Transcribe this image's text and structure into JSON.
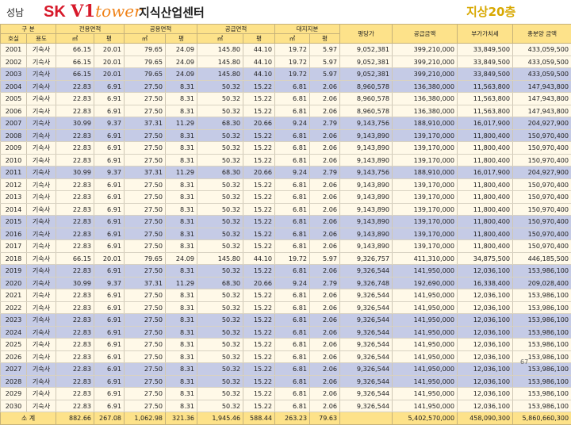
{
  "header": {
    "city": "성남",
    "logo_sk": "SK",
    "logo_v1": "V1",
    "logo_tower": "tower",
    "building_name": "지식산업센터",
    "floor_label": "지상20층"
  },
  "table": {
    "group_headers": [
      "구 분",
      "전용면적",
      "공용면적",
      "공급면적",
      "대지지분",
      "평당가",
      "공급금액",
      "부가가치세",
      "총분양 금액"
    ],
    "sub_headers": [
      "호실",
      "용도",
      "㎡",
      "평",
      "㎡",
      "평",
      "㎡",
      "평",
      "㎡",
      "평"
    ],
    "rows": [
      {
        "unit": "2001",
        "use": "기숙사",
        "ex_m2": "66.15",
        "ex_py": "20.01",
        "co_m2": "79.65",
        "co_py": "24.09",
        "su_m2": "145.80",
        "su_py": "44.10",
        "la_m2": "19.72",
        "la_py": "5.97",
        "ppp": "9,052,381",
        "supply": "399,210,000",
        "vat": "33,849,500",
        "total": "433,059,500"
      },
      {
        "unit": "2002",
        "use": "기숙사",
        "ex_m2": "66.15",
        "ex_py": "20.01",
        "co_m2": "79.65",
        "co_py": "24.09",
        "su_m2": "145.80",
        "su_py": "44.10",
        "la_m2": "19.72",
        "la_py": "5.97",
        "ppp": "9,052,381",
        "supply": "399,210,000",
        "vat": "33,849,500",
        "total": "433,059,500"
      },
      {
        "unit": "2003",
        "use": "기숙사",
        "ex_m2": "66.15",
        "ex_py": "20.01",
        "co_m2": "79.65",
        "co_py": "24.09",
        "su_m2": "145.80",
        "su_py": "44.10",
        "la_m2": "19.72",
        "la_py": "5.97",
        "ppp": "9,052,381",
        "supply": "399,210,000",
        "vat": "33,849,500",
        "total": "433,059,500"
      },
      {
        "unit": "2004",
        "use": "기숙사",
        "ex_m2": "22.83",
        "ex_py": "6.91",
        "co_m2": "27.50",
        "co_py": "8.31",
        "su_m2": "50.32",
        "su_py": "15.22",
        "la_m2": "6.81",
        "la_py": "2.06",
        "ppp": "8,960,578",
        "supply": "136,380,000",
        "vat": "11,563,800",
        "total": "147,943,800"
      },
      {
        "unit": "2005",
        "use": "기숙사",
        "ex_m2": "22.83",
        "ex_py": "6.91",
        "co_m2": "27.50",
        "co_py": "8.31",
        "su_m2": "50.32",
        "su_py": "15.22",
        "la_m2": "6.81",
        "la_py": "2.06",
        "ppp": "8,960,578",
        "supply": "136,380,000",
        "vat": "11,563,800",
        "total": "147,943,800"
      },
      {
        "unit": "2006",
        "use": "기숙사",
        "ex_m2": "22.83",
        "ex_py": "6.91",
        "co_m2": "27.50",
        "co_py": "8.31",
        "su_m2": "50.32",
        "su_py": "15.22",
        "la_m2": "6.81",
        "la_py": "2.06",
        "ppp": "8,960,578",
        "supply": "136,380,000",
        "vat": "11,563,800",
        "total": "147,943,800"
      },
      {
        "unit": "2007",
        "use": "기숙사",
        "ex_m2": "30.99",
        "ex_py": "9.37",
        "co_m2": "37.31",
        "co_py": "11.29",
        "su_m2": "68.30",
        "su_py": "20.66",
        "la_m2": "9.24",
        "la_py": "2.79",
        "ppp": "9,143,756",
        "supply": "188,910,000",
        "vat": "16,017,900",
        "total": "204,927,900"
      },
      {
        "unit": "2008",
        "use": "기숙사",
        "ex_m2": "22.83",
        "ex_py": "6.91",
        "co_m2": "27.50",
        "co_py": "8.31",
        "su_m2": "50.32",
        "su_py": "15.22",
        "la_m2": "6.81",
        "la_py": "2.06",
        "ppp": "9,143,890",
        "supply": "139,170,000",
        "vat": "11,800,400",
        "total": "150,970,400"
      },
      {
        "unit": "2009",
        "use": "기숙사",
        "ex_m2": "22.83",
        "ex_py": "6.91",
        "co_m2": "27.50",
        "co_py": "8.31",
        "su_m2": "50.32",
        "su_py": "15.22",
        "la_m2": "6.81",
        "la_py": "2.06",
        "ppp": "9,143,890",
        "supply": "139,170,000",
        "vat": "11,800,400",
        "total": "150,970,400"
      },
      {
        "unit": "2010",
        "use": "기숙사",
        "ex_m2": "22.83",
        "ex_py": "6.91",
        "co_m2": "27.50",
        "co_py": "8.31",
        "su_m2": "50.32",
        "su_py": "15.22",
        "la_m2": "6.81",
        "la_py": "2.06",
        "ppp": "9,143,890",
        "supply": "139,170,000",
        "vat": "11,800,400",
        "total": "150,970,400"
      },
      {
        "unit": "2011",
        "use": "기숙사",
        "ex_m2": "30.99",
        "ex_py": "9.37",
        "co_m2": "37.31",
        "co_py": "11.29",
        "su_m2": "68.30",
        "su_py": "20.66",
        "la_m2": "9.24",
        "la_py": "2.79",
        "ppp": "9,143,756",
        "supply": "188,910,000",
        "vat": "16,017,900",
        "total": "204,927,900"
      },
      {
        "unit": "2012",
        "use": "기숙사",
        "ex_m2": "22.83",
        "ex_py": "6.91",
        "co_m2": "27.50",
        "co_py": "8.31",
        "su_m2": "50.32",
        "su_py": "15.22",
        "la_m2": "6.81",
        "la_py": "2.06",
        "ppp": "9,143,890",
        "supply": "139,170,000",
        "vat": "11,800,400",
        "total": "150,970,400"
      },
      {
        "unit": "2013",
        "use": "기숙사",
        "ex_m2": "22.83",
        "ex_py": "6.91",
        "co_m2": "27.50",
        "co_py": "8.31",
        "su_m2": "50.32",
        "su_py": "15.22",
        "la_m2": "6.81",
        "la_py": "2.06",
        "ppp": "9,143,890",
        "supply": "139,170,000",
        "vat": "11,800,400",
        "total": "150,970,400"
      },
      {
        "unit": "2014",
        "use": "기숙사",
        "ex_m2": "22.83",
        "ex_py": "6.91",
        "co_m2": "27.50",
        "co_py": "8.31",
        "su_m2": "50.32",
        "su_py": "15.22",
        "la_m2": "6.81",
        "la_py": "2.06",
        "ppp": "9,143,890",
        "supply": "139,170,000",
        "vat": "11,800,400",
        "total": "150,970,400"
      },
      {
        "unit": "2015",
        "use": "기숙사",
        "ex_m2": "22.83",
        "ex_py": "6.91",
        "co_m2": "27.50",
        "co_py": "8.31",
        "su_m2": "50.32",
        "su_py": "15.22",
        "la_m2": "6.81",
        "la_py": "2.06",
        "ppp": "9,143,890",
        "supply": "139,170,000",
        "vat": "11,800,400",
        "total": "150,970,400"
      },
      {
        "unit": "2016",
        "use": "기숙사",
        "ex_m2": "22.83",
        "ex_py": "6.91",
        "co_m2": "27.50",
        "co_py": "8.31",
        "su_m2": "50.32",
        "su_py": "15.22",
        "la_m2": "6.81",
        "la_py": "2.06",
        "ppp": "9,143,890",
        "supply": "139,170,000",
        "vat": "11,800,400",
        "total": "150,970,400"
      },
      {
        "unit": "2017",
        "use": "기숙사",
        "ex_m2": "22.83",
        "ex_py": "6.91",
        "co_m2": "27.50",
        "co_py": "8.31",
        "su_m2": "50.32",
        "su_py": "15.22",
        "la_m2": "6.81",
        "la_py": "2.06",
        "ppp": "9,143,890",
        "supply": "139,170,000",
        "vat": "11,800,400",
        "total": "150,970,400"
      },
      {
        "unit": "2018",
        "use": "기숙사",
        "ex_m2": "66.15",
        "ex_py": "20.01",
        "co_m2": "79.65",
        "co_py": "24.09",
        "su_m2": "145.80",
        "su_py": "44.10",
        "la_m2": "19.72",
        "la_py": "5.97",
        "ppp": "9,326,757",
        "supply": "411,310,000",
        "vat": "34,875,500",
        "total": "446,185,500"
      },
      {
        "unit": "2019",
        "use": "기숙사",
        "ex_m2": "22.83",
        "ex_py": "6.91",
        "co_m2": "27.50",
        "co_py": "8.31",
        "su_m2": "50.32",
        "su_py": "15.22",
        "la_m2": "6.81",
        "la_py": "2.06",
        "ppp": "9,326,544",
        "supply": "141,950,000",
        "vat": "12,036,100",
        "total": "153,986,100"
      },
      {
        "unit": "2020",
        "use": "기숙사",
        "ex_m2": "30.99",
        "ex_py": "9.37",
        "co_m2": "37.31",
        "co_py": "11.29",
        "su_m2": "68.30",
        "su_py": "20.66",
        "la_m2": "9.24",
        "la_py": "2.79",
        "ppp": "9,326,748",
        "supply": "192,690,000",
        "vat": "16,338,400",
        "total": "209,028,400"
      },
      {
        "unit": "2021",
        "use": "기숙사",
        "ex_m2": "22.83",
        "ex_py": "6.91",
        "co_m2": "27.50",
        "co_py": "8.31",
        "su_m2": "50.32",
        "su_py": "15.22",
        "la_m2": "6.81",
        "la_py": "2.06",
        "ppp": "9,326,544",
        "supply": "141,950,000",
        "vat": "12,036,100",
        "total": "153,986,100"
      },
      {
        "unit": "2022",
        "use": "기숙사",
        "ex_m2": "22.83",
        "ex_py": "6.91",
        "co_m2": "27.50",
        "co_py": "8.31",
        "su_m2": "50.32",
        "su_py": "15.22",
        "la_m2": "6.81",
        "la_py": "2.06",
        "ppp": "9,326,544",
        "supply": "141,950,000",
        "vat": "12,036,100",
        "total": "153,986,100"
      },
      {
        "unit": "2023",
        "use": "기숙사",
        "ex_m2": "22.83",
        "ex_py": "6.91",
        "co_m2": "27.50",
        "co_py": "8.31",
        "su_m2": "50.32",
        "su_py": "15.22",
        "la_m2": "6.81",
        "la_py": "2.06",
        "ppp": "9,326,544",
        "supply": "141,950,000",
        "vat": "12,036,100",
        "total": "153,986,100"
      },
      {
        "unit": "2024",
        "use": "기숙사",
        "ex_m2": "22.83",
        "ex_py": "6.91",
        "co_m2": "27.50",
        "co_py": "8.31",
        "su_m2": "50.32",
        "su_py": "15.22",
        "la_m2": "6.81",
        "la_py": "2.06",
        "ppp": "9,326,544",
        "supply": "141,950,000",
        "vat": "12,036,100",
        "total": "153,986,100"
      },
      {
        "unit": "2025",
        "use": "기숙사",
        "ex_m2": "22.83",
        "ex_py": "6.91",
        "co_m2": "27.50",
        "co_py": "8.31",
        "su_m2": "50.32",
        "su_py": "15.22",
        "la_m2": "6.81",
        "la_py": "2.06",
        "ppp": "9,326,544",
        "supply": "141,950,000",
        "vat": "12,036,100",
        "total": "153,986,100"
      },
      {
        "unit": "2026",
        "use": "기숙사",
        "ex_m2": "22.83",
        "ex_py": "6.91",
        "co_m2": "27.50",
        "co_py": "8.31",
        "su_m2": "50.32",
        "su_py": "15.22",
        "la_m2": "6.81",
        "la_py": "2.06",
        "ppp": "9,326,544",
        "supply": "141,950,000",
        "vat": "12,036,100",
        "total": "153,986,100"
      },
      {
        "unit": "2027",
        "use": "기숙사",
        "ex_m2": "22.83",
        "ex_py": "6.91",
        "co_m2": "27.50",
        "co_py": "8.31",
        "su_m2": "50.32",
        "su_py": "15.22",
        "la_m2": "6.81",
        "la_py": "2.06",
        "ppp": "9,326,544",
        "supply": "141,950,000",
        "vat": "12,036,100",
        "total": "153,986,100"
      },
      {
        "unit": "2028",
        "use": "기숙사",
        "ex_m2": "22.83",
        "ex_py": "6.91",
        "co_m2": "27.50",
        "co_py": "8.31",
        "su_m2": "50.32",
        "su_py": "15.22",
        "la_m2": "6.81",
        "la_py": "2.06",
        "ppp": "9,326,544",
        "supply": "141,950,000",
        "vat": "12,036,100",
        "total": "153,986,100"
      },
      {
        "unit": "2029",
        "use": "기숙사",
        "ex_m2": "22.83",
        "ex_py": "6.91",
        "co_m2": "27.50",
        "co_py": "8.31",
        "su_m2": "50.32",
        "su_py": "15.22",
        "la_m2": "6.81",
        "la_py": "2.06",
        "ppp": "9,326,544",
        "supply": "141,950,000",
        "vat": "12,036,100",
        "total": "153,986,100"
      },
      {
        "unit": "2030",
        "use": "기숙사",
        "ex_m2": "22.83",
        "ex_py": "6.91",
        "co_m2": "27.50",
        "co_py": "8.31",
        "su_m2": "50.32",
        "su_py": "15.22",
        "la_m2": "6.81",
        "la_py": "2.06",
        "ppp": "9,326,544",
        "supply": "141,950,000",
        "vat": "12,036,100",
        "total": "153,986,100"
      }
    ],
    "totals": {
      "label": "소    계",
      "ex_m2": "882.66",
      "ex_py": "267.08",
      "co_m2": "1,062.98",
      "co_py": "321.36",
      "su_m2": "1,945.46",
      "su_py": "588.44",
      "la_m2": "263.23",
      "la_py": "79.63",
      "ppp": "",
      "supply": "5,402,570,000",
      "vat": "458,090,300",
      "total": "5,860,660,300"
    }
  },
  "page_number": "67",
  "colors": {
    "header_yellow": "#fde28a",
    "row_cream": "#fff9e8",
    "row_blue": "#c5cbe6",
    "brand_red": "#d7192a",
    "brand_orange": "#f08319",
    "floor_gold": "#d8a800"
  }
}
